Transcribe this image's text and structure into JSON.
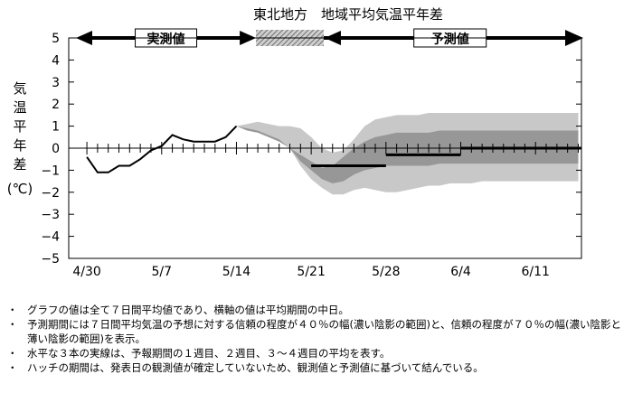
{
  "chart_data": {
    "type": "line",
    "title": "東北地方　地域平均気温平年差",
    "ylabel_chars": [
      "気",
      "温",
      "平",
      "年",
      "差"
    ],
    "yunit": "(℃)",
    "ylim": [
      -5,
      5
    ],
    "y_ticks": [
      "5",
      "4",
      "3",
      "2",
      "1",
      "0",
      "−1",
      "−2",
      "−3",
      "−4",
      "−5"
    ],
    "x_tick_labels": [
      {
        "day": 0,
        "label": "4/30"
      },
      {
        "day": 7,
        "label": "5/7"
      },
      {
        "day": 14,
        "label": "5/14"
      },
      {
        "day": 21,
        "label": "5/21"
      },
      {
        "day": 28,
        "label": "5/28"
      },
      {
        "day": 35,
        "label": "6/4"
      },
      {
        "day": 42,
        "label": "6/11"
      }
    ],
    "periods": {
      "observed_label": "実測値",
      "forecast_label": "予測値"
    },
    "observed": {
      "x": [
        0,
        1,
        2,
        3,
        4,
        5,
        6,
        7,
        8,
        9,
        10,
        11,
        12,
        13,
        14
      ],
      "y": [
        -0.4,
        -1.1,
        -1.1,
        -0.8,
        -0.8,
        -0.5,
        -0.1,
        0.1,
        0.6,
        0.4,
        0.3,
        0.3,
        0.3,
        0.5,
        1.0
      ]
    },
    "band70": {
      "x": [
        14,
        15,
        16,
        17,
        18,
        19,
        20,
        21,
        22,
        23,
        24,
        25,
        26,
        27,
        28,
        29,
        30,
        31,
        32,
        33,
        34,
        35,
        36,
        37,
        38,
        39,
        40,
        41,
        42,
        43,
        44,
        45,
        46
      ],
      "upper": [
        1.0,
        1.1,
        1.2,
        1.1,
        1.0,
        1.0,
        0.9,
        0.5,
        0.0,
        -0.2,
        -0.1,
        0.4,
        1.0,
        1.3,
        1.4,
        1.5,
        1.5,
        1.5,
        1.6,
        1.6,
        1.6,
        1.6,
        1.6,
        1.6,
        1.6,
        1.6,
        1.6,
        1.6,
        1.6,
        1.6,
        1.6,
        1.6,
        1.6
      ],
      "lower": [
        1.0,
        0.9,
        0.8,
        0.6,
        0.4,
        0.0,
        -0.8,
        -1.4,
        -1.8,
        -2.1,
        -2.1,
        -1.9,
        -1.8,
        -1.9,
        -2.0,
        -2.0,
        -1.9,
        -1.8,
        -1.7,
        -1.7,
        -1.6,
        -1.6,
        -1.6,
        -1.5,
        -1.5,
        -1.5,
        -1.5,
        -1.5,
        -1.5,
        -1.5,
        -1.5,
        -1.5,
        -1.5
      ]
    },
    "band40": {
      "x": [
        14,
        15,
        16,
        17,
        18,
        19,
        20,
        21,
        22,
        23,
        24,
        25,
        26,
        27,
        28,
        29,
        30,
        31,
        32,
        33,
        34,
        35,
        36,
        37,
        38,
        39,
        40,
        41,
        42,
        43,
        44,
        45,
        46
      ],
      "upper": [
        1.0,
        0.9,
        0.8,
        0.6,
        0.4,
        0.0,
        -0.3,
        -0.6,
        -0.9,
        -0.8,
        -0.4,
        0.0,
        0.3,
        0.5,
        0.6,
        0.7,
        0.7,
        0.7,
        0.7,
        0.8,
        0.8,
        0.8,
        0.8,
        0.8,
        0.8,
        0.8,
        0.8,
        0.8,
        0.8,
        0.8,
        0.8,
        0.8,
        0.8
      ],
      "lower": [
        1.0,
        0.8,
        0.7,
        0.5,
        0.3,
        0.0,
        -0.6,
        -1.0,
        -1.4,
        -1.6,
        -1.5,
        -1.2,
        -1.0,
        -0.9,
        -0.8,
        -0.8,
        -0.8,
        -0.8,
        -0.8,
        -0.7,
        -0.7,
        -0.7,
        -0.7,
        -0.7,
        -0.7,
        -0.7,
        -0.7,
        -0.7,
        -0.7,
        -0.7,
        -0.7,
        -0.7,
        -0.7
      ]
    },
    "week_means": [
      {
        "label": "1週目",
        "x0": 21,
        "x1": 28,
        "y": -0.8
      },
      {
        "label": "2週目",
        "x0": 28,
        "x1": 35,
        "y": -0.3
      },
      {
        "label": "3〜4週目",
        "x0": 35,
        "x1": 49,
        "y": 0.0
      }
    ],
    "hatch_period": {
      "x0": 16,
      "x1": 22
    }
  },
  "notes": [
    "グラフの値は全て７日間平均値であり、横軸の値は平均期間の中日。",
    "予測期間には７日間平均気温の予想に対する信頼の程度が４０％の幅(濃い陰影の範囲)と、信頼の程度が７０％の幅(濃い陰影と薄い陰影の範囲)を表示。",
    "水平な３本の実線は、予報期間の１週目、２週目、３～４週目の平均を表す。",
    "ハッチの期間は、発表日の観測値が確定していないため、観測値と予測値に基づいて結んでいる。"
  ]
}
